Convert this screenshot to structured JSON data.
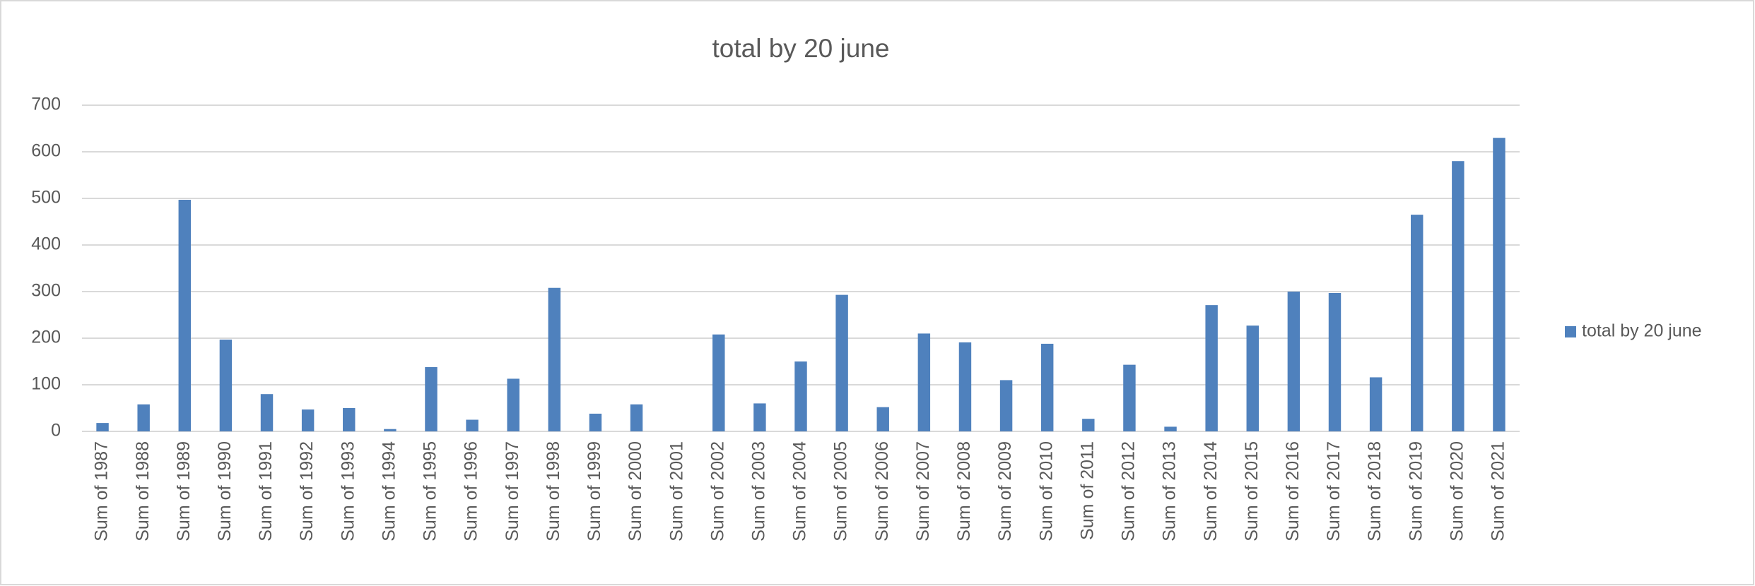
{
  "chart_data": {
    "type": "bar",
    "title": "total by 20 june",
    "categories": [
      "Sum of 1987",
      "Sum of 1988",
      "Sum of 1989",
      "Sum of 1990",
      "Sum of 1991",
      "Sum of 1992",
      "Sum of 1993",
      "Sum of 1994",
      "Sum of 1995",
      "Sum of 1996",
      "Sum of 1997",
      "Sum of 1998",
      "Sum of 1999",
      "Sum of 2000",
      "Sum of 2001",
      "Sum of 2002",
      "Sum of 2003",
      "Sum of 2004",
      "Sum of 2005",
      "Sum of 2006",
      "Sum of 2007",
      "Sum of 2008",
      "Sum of 2009",
      "Sum of 2010",
      "Sum of 2011",
      "Sum of 2012",
      "Sum of 2013",
      "Sum of 2014",
      "Sum of 2015",
      "Sum of 2016",
      "Sum of 2017",
      "Sum of 2018",
      "Sum of 2019",
      "Sum of 2020",
      "Sum of 2021"
    ],
    "series": [
      {
        "name": "total by 20 june",
        "color": "#4f81bd",
        "values": [
          18,
          58,
          497,
          197,
          80,
          47,
          50,
          5,
          138,
          25,
          113,
          308,
          38,
          58,
          0,
          208,
          60,
          150,
          293,
          52,
          210,
          191,
          110,
          188,
          27,
          143,
          10,
          271,
          227,
          300,
          297,
          116,
          465,
          580,
          630
        ]
      }
    ],
    "ylim": [
      0,
      700
    ],
    "yticks": [
      0,
      100,
      200,
      300,
      400,
      500,
      600,
      700
    ],
    "grid": true,
    "legend": "right"
  }
}
